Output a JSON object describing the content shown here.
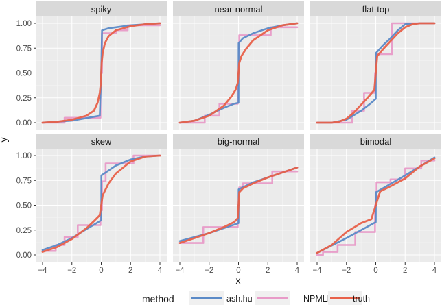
{
  "chart_data": {
    "type": "line",
    "xlabel": "x",
    "ylabel": "y",
    "xlim": [
      -4,
      4
    ],
    "ylim": [
      0,
      1
    ],
    "x_ticks": [
      -4,
      -2,
      0,
      2,
      4
    ],
    "x_tick_labels": [
      "−4",
      "−2",
      "0",
      "2",
      "4"
    ],
    "y_ticks": [
      0,
      0.25,
      0.5,
      0.75,
      1
    ],
    "y_tick_labels": [
      "0.00",
      "0.25",
      "0.50",
      "0.75",
      "1.00"
    ],
    "legend": {
      "title": "method",
      "position": "bottom",
      "entries": [
        {
          "name": "ash.hu",
          "color": "#5B8AC7"
        },
        {
          "name": "NPMLE",
          "color": "#E89BC8"
        },
        {
          "name": "truth",
          "color": "#E8614A"
        }
      ]
    },
    "panels": [
      {
        "title": "spiky",
        "series": [
          {
            "name": "ash.hu",
            "x": [
              -4,
              -2,
              -0.5,
              -0.1,
              0,
              0.05,
              0.5,
              1,
              2,
              3,
              4
            ],
            "y": [
              0.0,
              0.02,
              0.06,
              0.07,
              0.5,
              0.93,
              0.95,
              0.96,
              0.98,
              0.99,
              1.0
            ]
          },
          {
            "name": "NPMLE",
            "x": [
              -4,
              -2.5,
              -2.5,
              -0.05,
              -0.05,
              0.05,
              0.05,
              1.0,
              1.0,
              1.8,
              1.8,
              4
            ],
            "y": [
              0.0,
              0.0,
              0.05,
              0.05,
              0.5,
              0.5,
              0.9,
              0.9,
              0.93,
              0.93,
              0.98,
              0.98
            ]
          },
          {
            "name": "truth",
            "x": [
              -4,
              -3,
              -2,
              -1,
              -0.5,
              -0.25,
              -0.1,
              -0.03,
              0,
              0.03,
              0.1,
              0.25,
              0.5,
              1,
              2,
              3,
              4
            ],
            "y": [
              0.0,
              0.01,
              0.03,
              0.07,
              0.12,
              0.2,
              0.3,
              0.4,
              0.5,
              0.6,
              0.7,
              0.8,
              0.87,
              0.93,
              0.97,
              0.99,
              1.0
            ]
          }
        ]
      },
      {
        "title": "near-normal",
        "series": [
          {
            "name": "ash.hu",
            "x": [
              -4,
              -3,
              -2,
              -1,
              -0.3,
              0,
              0.01,
              0.3,
              1,
              2,
              3,
              4
            ],
            "y": [
              0.0,
              0.02,
              0.08,
              0.15,
              0.19,
              0.2,
              0.8,
              0.85,
              0.9,
              0.95,
              0.98,
              1.0
            ]
          },
          {
            "name": "NPMLE",
            "x": [
              -4,
              -2.3,
              -2.3,
              -1.3,
              -1.3,
              -0.05,
              -0.05,
              0.05,
              0.05,
              2.2,
              2.2,
              4
            ],
            "y": [
              0.0,
              0.0,
              0.07,
              0.07,
              0.19,
              0.19,
              0.5,
              0.5,
              0.88,
              0.88,
              0.96,
              0.96
            ]
          },
          {
            "name": "truth",
            "x": [
              -4,
              -3,
              -2,
              -1,
              -0.5,
              -0.2,
              -0.05,
              0,
              0.05,
              0.2,
              0.5,
              1,
              2,
              3,
              4
            ],
            "y": [
              0.0,
              0.02,
              0.07,
              0.17,
              0.26,
              0.33,
              0.4,
              0.5,
              0.6,
              0.67,
              0.74,
              0.83,
              0.93,
              0.98,
              1.0
            ]
          }
        ]
      },
      {
        "title": "flat-top",
        "series": [
          {
            "name": "ash.hu",
            "x": [
              -4,
              -3,
              -2,
              -1,
              -0.3,
              0,
              0.01,
              0.5,
              1,
              1.5,
              2,
              3,
              4
            ],
            "y": [
              0.0,
              0.0,
              0.03,
              0.12,
              0.2,
              0.24,
              0.7,
              0.78,
              0.85,
              0.93,
              0.99,
              1.0,
              1.0
            ]
          },
          {
            "name": "NPMLE",
            "x": [
              -4,
              -1.6,
              -1.6,
              -0.8,
              -0.8,
              -0.05,
              -0.05,
              0.05,
              0.05,
              1.1,
              1.1,
              4
            ],
            "y": [
              0.0,
              0.0,
              0.12,
              0.12,
              0.3,
              0.3,
              0.5,
              0.5,
              0.69,
              0.69,
              1.0,
              1.0
            ]
          },
          {
            "name": "truth",
            "x": [
              -4,
              -3,
              -2.5,
              -2,
              -1.5,
              -1,
              -0.5,
              -0.1,
              0,
              0.1,
              0.5,
              1,
              1.5,
              2,
              2.5,
              3,
              4
            ],
            "y": [
              0.0,
              0.0,
              0.01,
              0.04,
              0.1,
              0.18,
              0.26,
              0.33,
              0.5,
              0.67,
              0.74,
              0.82,
              0.9,
              0.96,
              0.99,
              1.0,
              1.0
            ]
          }
        ]
      },
      {
        "title": "skew",
        "series": [
          {
            "name": "ash.hu",
            "x": [
              -4,
              -3,
              -2,
              -1,
              -0.2,
              0,
              0.01,
              0.5,
              1,
              2,
              3,
              4
            ],
            "y": [
              0.05,
              0.1,
              0.17,
              0.26,
              0.33,
              0.35,
              0.8,
              0.85,
              0.9,
              0.96,
              0.99,
              1.0
            ]
          },
          {
            "name": "NPMLE",
            "x": [
              -4,
              -3.1,
              -3.1,
              -2.5,
              -2.5,
              -1.6,
              -1.6,
              -0.05,
              -0.05,
              0.05,
              0.05,
              0.3,
              0.3,
              2.2,
              2.2,
              4
            ],
            "y": [
              0.04,
              0.04,
              0.1,
              0.1,
              0.18,
              0.18,
              0.3,
              0.3,
              0.45,
              0.45,
              0.74,
              0.74,
              0.92,
              0.92,
              1.0,
              1.0
            ]
          },
          {
            "name": "truth",
            "x": [
              -4,
              -3,
              -2,
              -1,
              -0.5,
              -0.1,
              0,
              0.1,
              0.5,
              1,
              2,
              3,
              4
            ],
            "y": [
              0.03,
              0.08,
              0.16,
              0.27,
              0.34,
              0.4,
              0.5,
              0.6,
              0.72,
              0.82,
              0.94,
              0.99,
              1.0
            ]
          }
        ]
      },
      {
        "title": "big-normal",
        "series": [
          {
            "name": "ash.hu",
            "x": [
              -4,
              -2,
              -1,
              0,
              0.01,
              1,
              2,
              3,
              4
            ],
            "y": [
              0.14,
              0.22,
              0.27,
              0.32,
              0.66,
              0.73,
              0.78,
              0.83,
              0.88
            ]
          },
          {
            "name": "NPMLE",
            "x": [
              -4,
              -2.4,
              -2.4,
              -0.05,
              -0.05,
              0.05,
              0.05,
              0.3,
              0.3,
              2.3,
              2.3,
              4
            ],
            "y": [
              0.12,
              0.12,
              0.28,
              0.28,
              0.5,
              0.5,
              0.68,
              0.68,
              0.72,
              0.72,
              0.84,
              0.84
            ]
          },
          {
            "name": "truth",
            "x": [
              -4,
              -3,
              -2,
              -1,
              -0.3,
              -0.05,
              0,
              0.05,
              0.3,
              1,
              2,
              3,
              4
            ],
            "y": [
              0.12,
              0.17,
              0.22,
              0.28,
              0.33,
              0.37,
              0.5,
              0.63,
              0.67,
              0.72,
              0.78,
              0.83,
              0.88
            ]
          }
        ]
      },
      {
        "title": "bimodal",
        "series": [
          {
            "name": "ash.hu",
            "x": [
              -4,
              -2,
              0,
              0.01,
              2,
              4
            ],
            "y": [
              0.02,
              0.17,
              0.33,
              0.63,
              0.8,
              0.98
            ]
          },
          {
            "name": "NPMLE",
            "x": [
              -4,
              -3.6,
              -3.6,
              -2.6,
              -2.6,
              -1.4,
              -1.4,
              -0.05,
              -0.05,
              0.05,
              0.05,
              1.0,
              1.0,
              2.0,
              2.0,
              3.1,
              3.1,
              4
            ],
            "y": [
              0.0,
              0.0,
              0.03,
              0.03,
              0.1,
              0.1,
              0.23,
              0.23,
              0.5,
              0.5,
              0.73,
              0.73,
              0.76,
              0.76,
              0.87,
              0.87,
              0.95,
              0.95
            ]
          },
          {
            "name": "truth",
            "x": [
              -4,
              -3,
              -2,
              -1,
              -0.3,
              0,
              0.3,
              1,
              2,
              3,
              4
            ],
            "y": [
              0.02,
              0.1,
              0.23,
              0.32,
              0.36,
              0.5,
              0.64,
              0.69,
              0.77,
              0.89,
              0.97
            ]
          }
        ]
      }
    ]
  }
}
